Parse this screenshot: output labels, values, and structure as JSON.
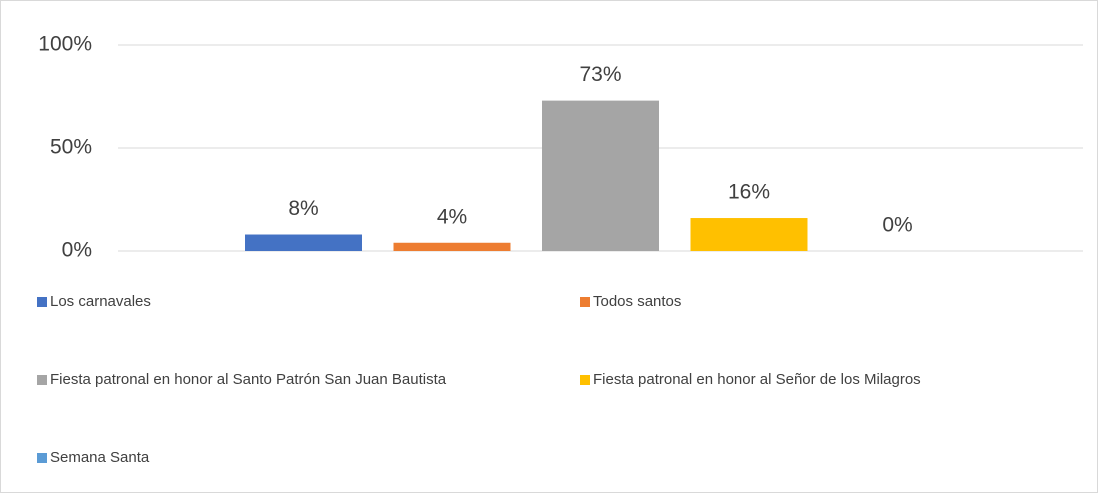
{
  "chart_data": {
    "type": "bar",
    "series": [
      {
        "name": "Los carnavales",
        "color": "#4472c4",
        "values": [
          8
        ],
        "value_labels": [
          "8%"
        ]
      },
      {
        "name": "Todos santos",
        "color": "#ed7d31",
        "values": [
          4
        ],
        "value_labels": [
          "4%"
        ]
      },
      {
        "name": "Fiesta patronal en honor al Santo Patrón San Juan Bautista",
        "color": "#a5a5a5",
        "values": [
          73
        ],
        "value_labels": [
          "73%"
        ]
      },
      {
        "name": "Fiesta patronal en honor al Señor de los Milagros",
        "color": "#ffc000",
        "values": [
          16
        ],
        "value_labels": [
          "16%"
        ]
      },
      {
        "name": "Semana Santa",
        "color": "#5b9bd5",
        "values": [
          0
        ],
        "value_labels": [
          "0%"
        ]
      }
    ],
    "ylim": [
      0,
      100
    ],
    "yticks": [
      {
        "value": 0,
        "label": "0%"
      },
      {
        "value": 50,
        "label": "50%"
      },
      {
        "value": 100,
        "label": "100%"
      }
    ],
    "grid": true
  }
}
